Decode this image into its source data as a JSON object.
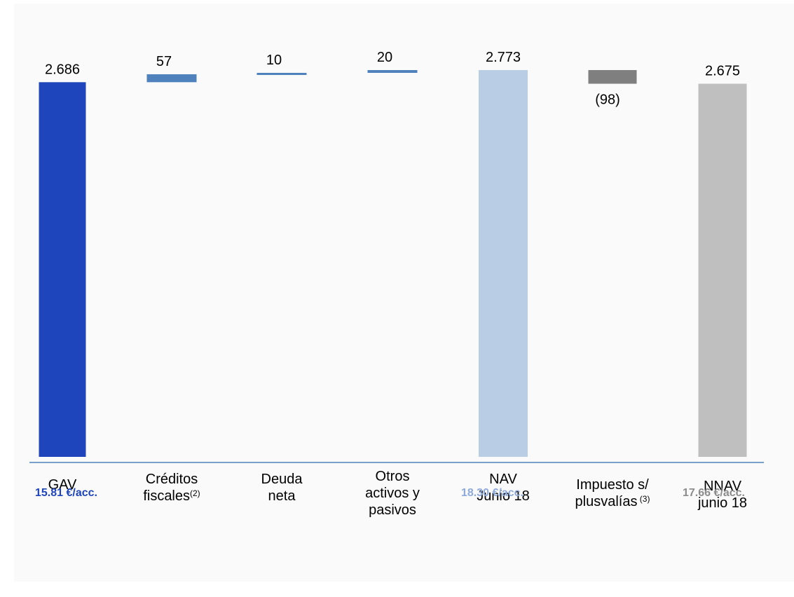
{
  "chart_data": {
    "type": "bar",
    "subtype": "waterfall",
    "categories": [
      {
        "text": "GAV",
        "sup": ""
      },
      {
        "text": "Créditos\nfiscales",
        "sup": "(2)"
      },
      {
        "text": "Deuda\nneta",
        "sup": ""
      },
      {
        "text": "Otros\nactivos y\npasivos",
        "sup": ""
      },
      {
        "text": "NAV\nJunio 18",
        "sup": ""
      },
      {
        "text": "Impuesto s/\nplusvalías",
        "sup": " (3)"
      },
      {
        "text": "NNAV\njunio 18",
        "sup": ""
      }
    ],
    "bars": [
      {
        "kind": "total",
        "start": 0,
        "end": 2686,
        "label": "2.686",
        "color": "#1f45bd"
      },
      {
        "kind": "delta",
        "start": 2686,
        "end": 2743,
        "label": "57",
        "color": "#4f81bd"
      },
      {
        "kind": "delta",
        "start": 2743,
        "end": 2753,
        "label": "10",
        "color": "#4f81bd"
      },
      {
        "kind": "delta",
        "start": 2753,
        "end": 2773,
        "label": "20",
        "color": "#4f81bd"
      },
      {
        "kind": "total",
        "start": 0,
        "end": 2773,
        "label": "2.773",
        "color": "#b9cde5"
      },
      {
        "kind": "delta",
        "start": 2773,
        "end": 2675,
        "label": "(98)",
        "color": "#7f7f7f"
      },
      {
        "kind": "total",
        "start": 0,
        "end": 2675,
        "label": "2.675",
        "color": "#bfbfbf"
      }
    ],
    "ylim": [
      0,
      2800
    ],
    "grid": false,
    "legend": "none",
    "axis_color": "#4f81bd"
  },
  "per_share": [
    {
      "text": "15.81 €/acc.",
      "color": "#1f45bd"
    },
    {
      "text": "18.30 €/acc.",
      "color": "#8eaadb"
    },
    {
      "text": "17.66 €/acc.",
      "color": "#8c8c8c"
    }
  ]
}
